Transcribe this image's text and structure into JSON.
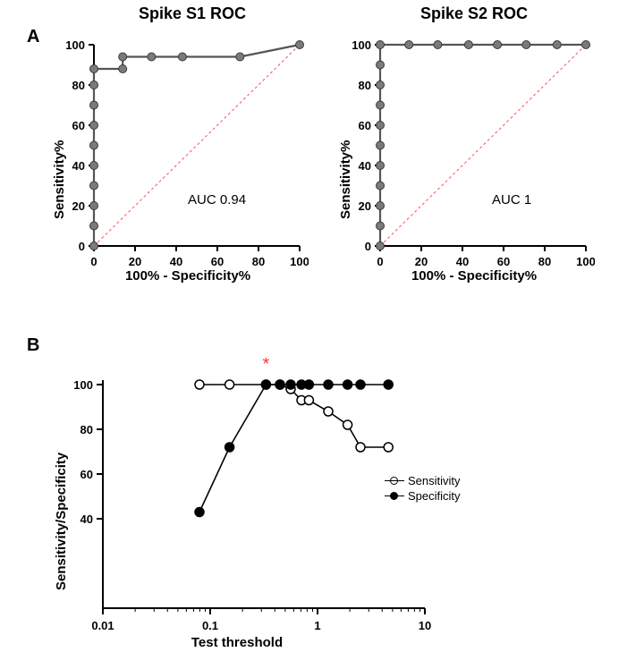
{
  "panelA": {
    "label": "A"
  },
  "panelB": {
    "label": "B"
  },
  "chart1": {
    "type": "line",
    "title": "Spike S1 ROC",
    "xlabel": "100% - Specificity%",
    "ylabel": "Sensitivity%",
    "auc_text": "AUC 0.94",
    "xlim": [
      0,
      100
    ],
    "ylim": [
      0,
      100
    ],
    "xtick_step": 20,
    "ytick_step": 20,
    "tick_fontsize": 13,
    "title_fontsize": 18,
    "label_fontsize": 15,
    "line_color": "#555555",
    "line_width": 2.2,
    "marker_fill": "#7a7a7a",
    "marker_stroke": "#3a3a3a",
    "marker_radius": 4.5,
    "diag_color": "#ff4d4d",
    "diag_dash": "3,3",
    "axis_color": "#000000",
    "background_color": "#ffffff",
    "roc_points": [
      {
        "x": 0,
        "y": 0
      },
      {
        "x": 0,
        "y": 10
      },
      {
        "x": 0,
        "y": 20
      },
      {
        "x": 0,
        "y": 30
      },
      {
        "x": 0,
        "y": 40
      },
      {
        "x": 0,
        "y": 50
      },
      {
        "x": 0,
        "y": 60
      },
      {
        "x": 0,
        "y": 70
      },
      {
        "x": 0,
        "y": 80
      },
      {
        "x": 0,
        "y": 88
      },
      {
        "x": 14,
        "y": 88
      },
      {
        "x": 14,
        "y": 94
      },
      {
        "x": 28,
        "y": 94
      },
      {
        "x": 43,
        "y": 94
      },
      {
        "x": 71,
        "y": 94
      },
      {
        "x": 100,
        "y": 100
      }
    ]
  },
  "chart2": {
    "type": "line",
    "title": "Spike S2 ROC",
    "xlabel": "100% - Specificity%",
    "ylabel": "Sensitivity%",
    "auc_text": "AUC 1",
    "xlim": [
      0,
      100
    ],
    "ylim": [
      0,
      100
    ],
    "xtick_step": 20,
    "ytick_step": 20,
    "tick_fontsize": 13,
    "title_fontsize": 18,
    "label_fontsize": 15,
    "line_color": "#555555",
    "line_width": 2.2,
    "marker_fill": "#7a7a7a",
    "marker_stroke": "#3a3a3a",
    "marker_radius": 4.5,
    "diag_color": "#ff4d4d",
    "diag_dash": "3,3",
    "axis_color": "#000000",
    "background_color": "#ffffff",
    "roc_points": [
      {
        "x": 0,
        "y": 0
      },
      {
        "x": 0,
        "y": 10
      },
      {
        "x": 0,
        "y": 20
      },
      {
        "x": 0,
        "y": 30
      },
      {
        "x": 0,
        "y": 40
      },
      {
        "x": 0,
        "y": 50
      },
      {
        "x": 0,
        "y": 60
      },
      {
        "x": 0,
        "y": 70
      },
      {
        "x": 0,
        "y": 80
      },
      {
        "x": 0,
        "y": 90
      },
      {
        "x": 0,
        "y": 100
      },
      {
        "x": 14,
        "y": 100
      },
      {
        "x": 28,
        "y": 100
      },
      {
        "x": 43,
        "y": 100
      },
      {
        "x": 57,
        "y": 100
      },
      {
        "x": 71,
        "y": 100
      },
      {
        "x": 86,
        "y": 100
      },
      {
        "x": 100,
        "y": 100
      }
    ]
  },
  "chart3": {
    "type": "line_logx",
    "xlabel": "Test threshold",
    "ylabel": "Sensitivity/Specificity",
    "xlim_log": [
      0.01,
      10
    ],
    "ylim": [
      0,
      100
    ],
    "ytick_labels": [
      "40",
      "60",
      "80",
      "100"
    ],
    "ytick_values": [
      40,
      60,
      80,
      100
    ],
    "xtick_labels": [
      "0.01",
      "0.1",
      "1",
      "10"
    ],
    "xtick_values_log": [
      -2,
      -1,
      0,
      1
    ],
    "tick_fontsize": 13,
    "label_fontsize": 15,
    "line_color": "#000000",
    "line_width": 1.6,
    "marker_radius": 5,
    "axis_color": "#000000",
    "background_color": "#ffffff",
    "star_color": "#ff3333",
    "star_text": "*",
    "star_pos": {
      "x_log": -0.48,
      "y": 109
    },
    "legend": {
      "items": [
        {
          "label": "Sensitivity",
          "filled": false
        },
        {
          "label": "Specificity",
          "filled": true
        }
      ]
    },
    "series": [
      {
        "name": "Sensitivity",
        "filled": false,
        "points": [
          {
            "x_log": -1.1,
            "y": 100
          },
          {
            "x_log": -0.82,
            "y": 100
          },
          {
            "x_log": -0.48,
            "y": 100
          },
          {
            "x_log": -0.35,
            "y": 100
          },
          {
            "x_log": -0.25,
            "y": 98
          },
          {
            "x_log": -0.15,
            "y": 93
          },
          {
            "x_log": -0.08,
            "y": 93
          },
          {
            "x_log": 0.1,
            "y": 88
          },
          {
            "x_log": 0.28,
            "y": 82
          },
          {
            "x_log": 0.4,
            "y": 72
          },
          {
            "x_log": 0.66,
            "y": 72
          }
        ]
      },
      {
        "name": "Specificity",
        "filled": true,
        "points": [
          {
            "x_log": -1.1,
            "y": 43
          },
          {
            "x_log": -0.82,
            "y": 72
          },
          {
            "x_log": -0.48,
            "y": 100
          },
          {
            "x_log": -0.35,
            "y": 100
          },
          {
            "x_log": -0.25,
            "y": 100
          },
          {
            "x_log": -0.15,
            "y": 100
          },
          {
            "x_log": -0.08,
            "y": 100
          },
          {
            "x_log": 0.1,
            "y": 100
          },
          {
            "x_log": 0.28,
            "y": 100
          },
          {
            "x_log": 0.4,
            "y": 100
          },
          {
            "x_log": 0.66,
            "y": 100
          }
        ]
      }
    ]
  }
}
